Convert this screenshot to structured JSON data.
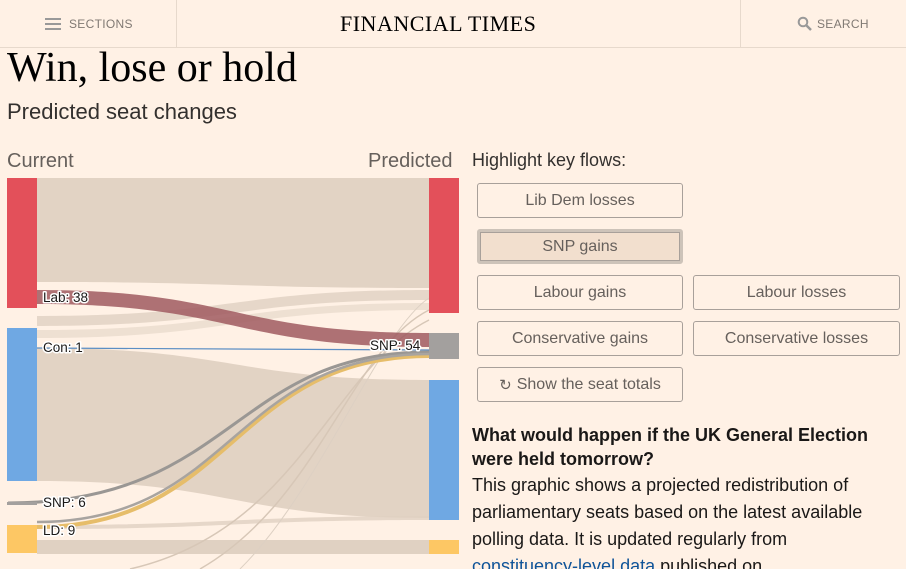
{
  "header": {
    "sections_label": "SECTIONS",
    "logo": "FINANCIAL TIMES",
    "search_label": "SEARCH"
  },
  "article": {
    "title": "Win, lose or hold",
    "subtitle": "Predicted seat changes"
  },
  "sankey": {
    "left_label": "Current",
    "right_label": "Predicted",
    "colors": {
      "labour": "#e3505a",
      "conservative": "#6fa8e3",
      "snp": "#a3a09e",
      "libdem": "#fdc764",
      "flow": "#e0d1c2"
    },
    "flow_labels": [
      "Lab: 38",
      "Con: 1",
      "SNP: 6",
      "LD: 9",
      "SNP: 54"
    ]
  },
  "panel": {
    "highlight_title": "Highlight key flows:",
    "buttons": {
      "libdem_losses": "Lib Dem losses",
      "snp_gains": "SNP gains",
      "labour_gains": "Labour gains",
      "labour_losses": "Labour losses",
      "conservative_gains": "Conservative gains",
      "conservative_losses": "Conservative losses",
      "show_totals": "Show the seat totals"
    },
    "active_button": "SNP gains",
    "question": "What would happen if the UK General Election were held tomorrow?",
    "body_text": "This graphic shows a projected redistribution of parliamentary seats based on the latest available polling data. It is updated regularly from",
    "link_text": "constituency-level data",
    "body_text_tail": " published on"
  }
}
